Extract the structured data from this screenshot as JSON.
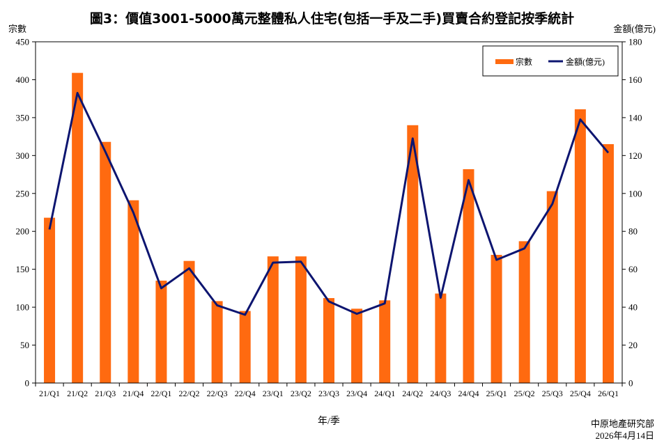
{
  "chart_data": {
    "type": "bar",
    "title": "圖3：價值3001-5000萬元整體私人住宅(包括一手及二手)買賣合約登記按季統計",
    "xlabel": "年/季",
    "ylabel": "宗數",
    "y2label": "金額(億元)",
    "ylim": [
      0,
      450
    ],
    "y2lim": [
      0,
      180
    ],
    "yticks": [
      0,
      50,
      100,
      150,
      200,
      250,
      300,
      350,
      400,
      450
    ],
    "y2ticks": [
      0,
      20,
      40,
      60,
      80,
      100,
      120,
      140,
      160,
      180
    ],
    "categories": [
      "21/Q1",
      "21/Q2",
      "21/Q3",
      "21/Q4",
      "22/Q1",
      "22/Q2",
      "22/Q3",
      "22/Q4",
      "23/Q1",
      "23/Q2",
      "23/Q3",
      "23/Q4",
      "24/Q1",
      "24/Q2",
      "24/Q3",
      "24/Q4",
      "25/Q1",
      "25/Q2",
      "25/Q3",
      "25/Q4",
      "26/Q1"
    ],
    "series": [
      {
        "name": "宗數",
        "kind": "bar",
        "axis": "left",
        "color": "#FF6A10",
        "values": [
          218,
          409,
          318,
          241,
          135,
          161,
          108,
          95,
          167,
          167,
          112,
          98,
          109,
          340,
          118,
          282,
          169,
          187,
          253,
          361,
          315
        ]
      },
      {
        "name": "金額(億元)",
        "kind": "line",
        "axis": "right",
        "color": "#0D1570",
        "values": [
          81,
          153,
          122,
          90,
          50,
          60.5,
          41,
          36,
          63.5,
          64,
          43,
          36.5,
          42,
          129,
          45,
          107,
          65,
          71,
          94.5,
          139,
          121.5
        ]
      }
    ],
    "grid": false,
    "legend_position": "top-right"
  },
  "footer": {
    "source": "中原地產研究部",
    "date": "2026年4月14日"
  }
}
